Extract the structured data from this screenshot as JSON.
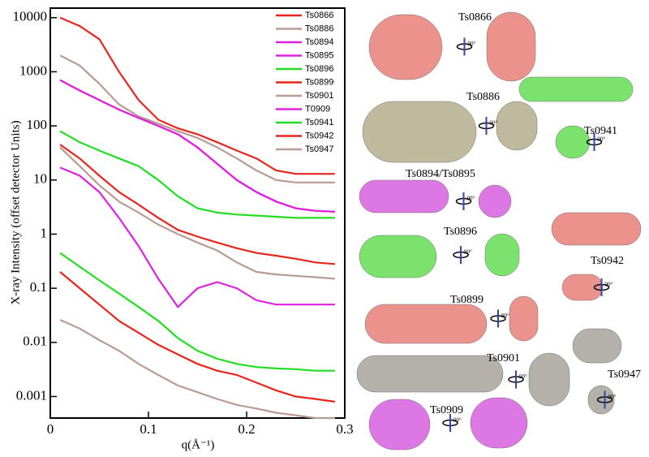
{
  "chart_data": {
    "type": "line",
    "y_label": "X-ray Intensity (offset detector Units)",
    "x_label": "q(Å⁻¹)",
    "xlim": [
      0,
      0.3
    ],
    "xticks": [
      0,
      0.1,
      0.2,
      0.3
    ],
    "ylim": [
      0.0004,
      15000
    ],
    "yticks": [
      10000,
      1000,
      100,
      10,
      1,
      0.1,
      0.01,
      0.001
    ],
    "log_y": true,
    "legend": "upper right",
    "x": [
      0.01,
      0.03,
      0.05,
      0.07,
      0.09,
      0.11,
      0.13,
      0.15,
      0.17,
      0.19,
      0.21,
      0.23,
      0.25,
      0.27,
      0.29
    ],
    "series": [
      {
        "name": "Ts0866",
        "color": "#e8251c",
        "values": [
          10000,
          7000,
          4000,
          1000,
          300,
          130,
          90,
          70,
          50,
          35,
          25,
          15,
          13,
          13,
          13
        ]
      },
      {
        "name": "Ts0886",
        "color": "#b89b93",
        "values": [
          2000,
          1300,
          600,
          250,
          150,
          110,
          80,
          60,
          40,
          25,
          15,
          10,
          9,
          9,
          9
        ]
      },
      {
        "name": "Ts0894",
        "color": "#e020e0",
        "values": [
          700,
          450,
          300,
          200,
          140,
          100,
          70,
          40,
          20,
          10,
          6,
          4,
          3,
          2.7,
          2.6
        ]
      },
      {
        "name": "Ts0895",
        "color": "#e020e0",
        "values": [
          700,
          450,
          300,
          200,
          140,
          100,
          70,
          40,
          20,
          10,
          6,
          4,
          3,
          2.7,
          2.6
        ]
      },
      {
        "name": "Ts0896",
        "color": "#22dd22",
        "values": [
          80,
          50,
          35,
          25,
          18,
          10,
          5,
          3,
          2.5,
          2.3,
          2.2,
          2.1,
          2,
          2,
          2
        ]
      },
      {
        "name": "Ts0899",
        "color": "#e8251c",
        "values": [
          45,
          25,
          12,
          6,
          3.5,
          2,
          1.2,
          0.9,
          0.7,
          0.55,
          0.45,
          0.4,
          0.35,
          0.3,
          0.28
        ]
      },
      {
        "name": "Ts0901",
        "color": "#b89b93",
        "values": [
          40,
          18,
          8,
          4,
          2.5,
          1.5,
          1,
          0.7,
          0.5,
          0.3,
          0.2,
          0.18,
          0.17,
          0.16,
          0.15
        ]
      },
      {
        "name": "T0909",
        "color": "#e020e0",
        "values": [
          17,
          12,
          6,
          2,
          0.6,
          0.15,
          0.045,
          0.1,
          0.13,
          0.1,
          0.06,
          0.05,
          0.05,
          0.05,
          0.05
        ]
      },
      {
        "name": "Ts0941",
        "color": "#22dd22",
        "values": [
          0.45,
          0.25,
          0.14,
          0.08,
          0.045,
          0.025,
          0.012,
          0.007,
          0.005,
          0.004,
          0.0035,
          0.0033,
          0.0032,
          0.003,
          0.003
        ]
      },
      {
        "name": "Ts0942",
        "color": "#e8251c",
        "values": [
          0.2,
          0.1,
          0.05,
          0.025,
          0.015,
          0.009,
          0.006,
          0.004,
          0.003,
          0.0025,
          0.0018,
          0.0013,
          0.001,
          0.0009,
          0.0008
        ]
      },
      {
        "name": "Ts0947",
        "color": "#b89b93",
        "values": [
          0.026,
          0.018,
          0.011,
          0.007,
          0.004,
          0.0025,
          0.0016,
          0.0012,
          0.0009,
          0.0007,
          0.0006,
          0.0005,
          0.00045,
          0.0004,
          0.0004
        ]
      }
    ]
  },
  "structures": [
    {
      "label": "Ts0866",
      "rotation": "90°",
      "color": "#e8807a"
    },
    {
      "label": "Ts0886",
      "rotation": "90°",
      "color": "#b5ae8c"
    },
    {
      "label": "Ts0941",
      "rotation": "90°",
      "color": "#66dd55"
    },
    {
      "label": "Ts0894/Ts0895",
      "rotation": "90°",
      "color": "#d860e0"
    },
    {
      "label": "Ts0896",
      "rotation": "90°",
      "color": "#66dd55"
    },
    {
      "label": "Ts0942",
      "rotation": "90°",
      "color": "#e8807a"
    },
    {
      "label": "Ts0899",
      "rotation": "90°",
      "color": "#e8807a"
    },
    {
      "label": "Ts0901",
      "rotation": "90°",
      "color": "#a8a49c"
    },
    {
      "label": "Ts0947",
      "rotation": "90°",
      "color": "#a8a49c"
    },
    {
      "label": "Ts0909",
      "rotation": "90°",
      "color": "#d860e0"
    }
  ]
}
